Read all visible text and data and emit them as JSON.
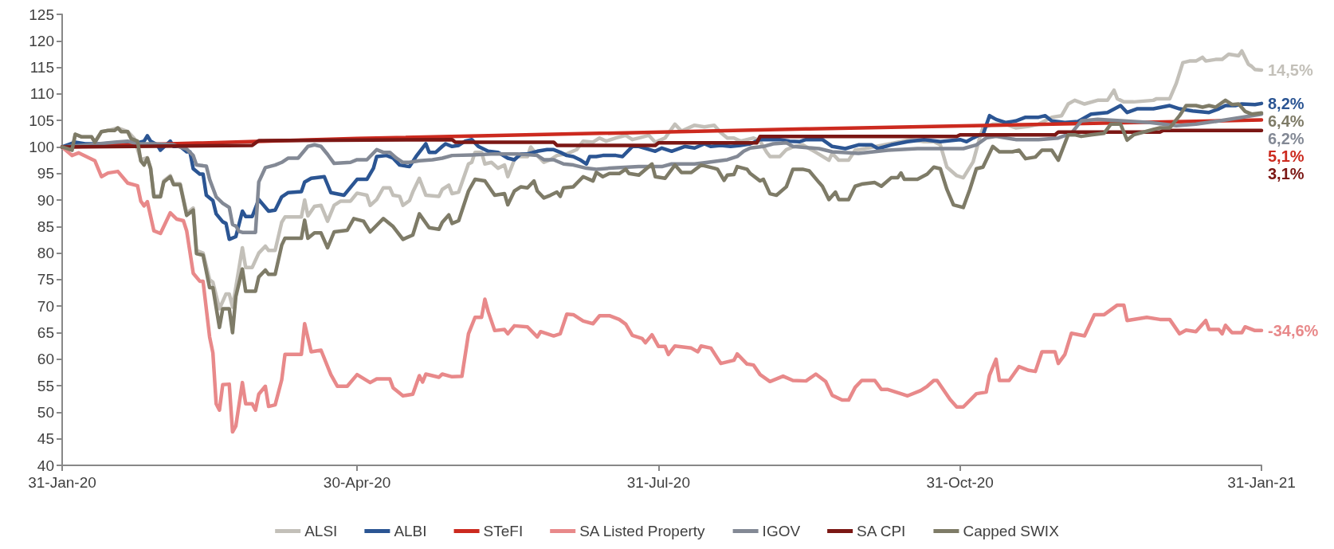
{
  "chart_data": {
    "type": "line",
    "xlim": [
      "2020-01-31",
      "2021-01-31"
    ],
    "xticks": [
      {
        "value": "2020-01-31",
        "label": "31-Jan-20"
      },
      {
        "value": "2020-04-30",
        "label": "30-Apr-20"
      },
      {
        "value": "2020-07-31",
        "label": "31-Jul-20"
      },
      {
        "value": "2020-10-31",
        "label": "31-Oct-20"
      },
      {
        "value": "2021-01-31",
        "label": "31-Jan-21"
      }
    ],
    "ylim": [
      40,
      125
    ],
    "yticks": [
      40,
      45,
      50,
      55,
      60,
      65,
      70,
      75,
      80,
      85,
      90,
      95,
      100,
      105,
      110,
      115,
      120,
      125
    ],
    "grid": false,
    "legend": "bottom",
    "marker": "none",
    "line_style": "solid",
    "series": [
      {
        "name": "ALSI",
        "color": "#c3c0b9",
        "x": [
          "2020-01-31",
          "2020-02-03",
          "2020-02-04",
          "2020-02-06",
          "2020-02-09",
          "2020-02-10",
          "2020-02-12",
          "2020-02-14",
          "2020-02-17",
          "2020-02-20",
          "2020-02-22",
          "2020-02-24",
          "2020-02-26",
          "2020-02-27",
          "2020-02-28",
          "2020-03-01",
          "2020-03-02",
          "2020-03-04",
          "2020-03-05",
          "2020-03-07",
          "2020-03-09",
          "2020-03-11",
          "2020-03-12",
          "2020-03-14",
          "2020-03-16",
          "2020-03-17",
          "2020-03-19",
          "2020-03-21",
          "2020-03-22",
          "2020-03-23",
          "2020-03-26",
          "2020-03-27",
          "2020-03-29",
          "2020-03-31",
          "2020-04-02",
          "2020-04-03",
          "2020-04-05",
          "2020-04-07",
          "2020-04-08",
          "2020-04-13",
          "2020-04-14",
          "2020-04-15",
          "2020-04-17",
          "2020-04-19",
          "2020-04-21",
          "2020-04-23",
          "2020-04-25",
          "2020-04-28",
          "2020-04-30",
          "2020-05-03",
          "2020-05-04",
          "2020-05-06",
          "2020-05-08",
          "2020-05-10",
          "2020-05-11",
          "2020-05-13",
          "2020-05-14",
          "2020-05-16",
          "2020-05-17",
          "2020-05-19",
          "2020-05-21",
          "2020-05-25",
          "2020-05-26",
          "2020-05-28",
          "2020-05-29",
          "2020-05-31",
          "2020-06-03",
          "2020-06-04",
          "2020-06-05",
          "2020-06-07",
          "2020-06-08",
          "2020-06-10",
          "2020-06-12",
          "2020-06-14",
          "2020-06-15",
          "2020-06-17",
          "2020-06-18",
          "2020-06-21",
          "2020-06-22",
          "2020-06-24",
          "2020-06-26",
          "2020-06-28",
          "2020-06-30",
          "2020-07-03",
          "2020-07-06",
          "2020-07-08",
          "2020-07-11",
          "2020-07-13",
          "2020-07-15",
          "2020-07-18",
          "2020-07-21",
          "2020-07-23",
          "2020-07-25",
          "2020-07-28",
          "2020-07-30",
          "2020-08-02",
          "2020-08-05",
          "2020-08-07",
          "2020-08-11",
          "2020-08-14",
          "2020-08-17",
          "2020-08-19",
          "2020-08-21",
          "2020-08-23",
          "2020-08-25",
          "2020-08-29",
          "2020-08-31",
          "2020-09-02",
          "2020-09-03",
          "2020-09-06",
          "2020-09-08",
          "2020-09-10",
          "2020-09-13",
          "2020-09-17",
          "2020-09-21",
          "2020-09-22",
          "2020-09-24",
          "2020-09-27",
          "2020-09-29",
          "2020-10-02",
          "2020-10-08",
          "2020-10-13",
          "2020-10-16",
          "2020-10-20",
          "2020-10-23",
          "2020-10-25",
          "2020-10-27",
          "2020-10-30",
          "2020-11-01",
          "2020-11-04",
          "2020-11-06",
          "2020-11-07",
          "2020-11-10",
          "2020-11-14",
          "2020-11-17",
          "2020-11-21",
          "2020-11-24",
          "2020-11-28",
          "2020-12-01",
          "2020-12-03",
          "2020-12-05",
          "2020-12-08",
          "2020-12-12",
          "2020-12-15",
          "2020-12-17",
          "2020-12-18",
          "2020-12-20",
          "2020-12-23",
          "2020-12-29",
          "2020-12-30",
          "2021-01-03",
          "2021-01-05",
          "2021-01-07",
          "2021-01-09",
          "2021-01-11",
          "2021-01-13",
          "2021-01-14",
          "2021-01-17",
          "2021-01-19",
          "2021-01-21",
          "2021-01-24",
          "2021-01-25",
          "2021-01-27",
          "2021-01-28",
          "2021-01-29",
          "2021-01-31"
        ],
        "values": [
          100,
          99.4,
          102.4,
          101.9,
          101.9,
          100.9,
          102.9,
          103.1,
          103.6,
          102.9,
          101.6,
          97.6,
          98,
          96,
          90.8,
          90.8,
          93.6,
          94.6,
          93.1,
          93.1,
          87.5,
          88.5,
          80.5,
          80,
          75,
          74.5,
          69.5,
          72.3,
          72.3,
          69.8,
          81,
          77.3,
          77.3,
          80,
          81.3,
          80.5,
          80.5,
          85.8,
          86.8,
          86.8,
          90,
          87,
          88.8,
          89,
          86,
          89,
          89.8,
          89.8,
          91.3,
          90.9,
          89,
          90.1,
          92.3,
          92.3,
          90.9,
          90.7,
          89,
          89.9,
          91.5,
          94.1,
          90.9,
          90.7,
          92,
          92.8,
          91.2,
          91.5,
          96.8,
          97.1,
          99,
          99,
          96.8,
          97.1,
          96,
          96.6,
          94.4,
          97.6,
          98.2,
          98.2,
          100,
          98.4,
          97.1,
          97.6,
          98.4,
          98.7,
          99.5,
          101.1,
          100.9,
          101.7,
          101.1,
          101.7,
          102.2,
          101.4,
          101.7,
          102.2,
          100.9,
          101.7,
          104.3,
          103,
          104.1,
          103.8,
          104.1,
          102.7,
          101.7,
          101.7,
          101.1,
          101.7,
          101.1,
          99,
          98.2,
          98.2,
          99.5,
          100,
          100.4,
          99,
          97.5,
          98.8,
          97.5,
          97.5,
          99.4,
          99.7,
          100.4,
          101,
          101.4,
          101,
          101,
          100.4,
          96.2,
          94.6,
          94.2,
          97.2,
          101.7,
          103.6,
          104.3,
          104.3,
          103.6,
          103.9,
          104.3,
          105.6,
          105.9,
          108.1,
          108.8,
          108.1,
          108.8,
          108.8,
          110.7,
          109.1,
          108.5,
          108.5,
          108.8,
          109.1,
          109.1,
          112,
          115.9,
          116.2,
          116.2,
          116.9,
          116.2,
          116.5,
          116.5,
          117.5,
          117.2,
          118.1,
          115.6,
          115.2,
          114.6,
          114.5
        ]
      },
      {
        "name": "ALBI",
        "color": "#2b5593",
        "x": [
          "2020-01-31",
          "2020-02-04",
          "2020-02-07",
          "2020-02-12",
          "2020-02-19",
          "2020-02-22",
          "2020-02-25",
          "2020-02-26",
          "2020-02-27",
          "2020-02-29",
          "2020-03-01",
          "2020-03-04",
          "2020-03-05",
          "2020-03-07",
          "2020-03-09",
          "2020-03-10",
          "2020-03-11",
          "2020-03-13",
          "2020-03-14",
          "2020-03-15",
          "2020-03-17",
          "2020-03-18",
          "2020-03-20",
          "2020-03-21",
          "2020-03-22",
          "2020-03-24",
          "2020-03-26",
          "2020-03-27",
          "2020-03-29",
          "2020-03-31",
          "2020-04-03",
          "2020-04-05",
          "2020-04-07",
          "2020-04-09",
          "2020-04-13",
          "2020-04-14",
          "2020-04-16",
          "2020-04-20",
          "2020-04-22",
          "2020-04-26",
          "2020-04-30",
          "2020-05-03",
          "2020-05-05",
          "2020-05-06",
          "2020-05-09",
          "2020-05-11",
          "2020-05-13",
          "2020-05-16",
          "2020-05-18",
          "2020-05-21",
          "2020-05-22",
          "2020-05-24",
          "2020-05-26",
          "2020-05-27",
          "2020-05-29",
          "2020-05-31",
          "2020-06-02",
          "2020-06-04",
          "2020-06-06",
          "2020-06-09",
          "2020-06-12",
          "2020-06-15",
          "2020-06-17",
          "2020-06-19",
          "2020-06-21",
          "2020-06-24",
          "2020-06-27",
          "2020-06-29",
          "2020-07-01",
          "2020-07-03",
          "2020-07-05",
          "2020-07-07",
          "2020-07-09",
          "2020-07-10",
          "2020-07-12",
          "2020-07-14",
          "2020-07-18",
          "2020-07-20",
          "2020-07-23",
          "2020-07-25",
          "2020-07-30",
          "2020-08-01",
          "2020-08-04",
          "2020-08-08",
          "2020-08-11",
          "2020-08-14",
          "2020-08-16",
          "2020-08-19",
          "2020-08-22",
          "2020-08-25",
          "2020-08-28",
          "2020-08-31",
          "2020-09-03",
          "2020-09-06",
          "2020-09-09",
          "2020-09-12",
          "2020-09-14",
          "2020-09-19",
          "2020-09-22",
          "2020-09-26",
          "2020-09-30",
          "2020-10-04",
          "2020-10-06",
          "2020-10-10",
          "2020-10-15",
          "2020-10-20",
          "2020-10-25",
          "2020-10-31",
          "2020-11-02",
          "2020-11-04",
          "2020-11-06",
          "2020-11-07",
          "2020-11-09",
          "2020-11-11",
          "2020-11-14",
          "2020-11-17",
          "2020-11-20",
          "2020-11-24",
          "2020-11-26",
          "2020-11-28",
          "2020-12-02",
          "2020-12-06",
          "2020-12-10",
          "2020-12-15",
          "2020-12-19",
          "2020-12-21",
          "2020-12-24",
          "2020-12-29",
          "2021-01-03",
          "2021-01-06",
          "2021-01-10",
          "2021-01-15",
          "2021-01-18",
          "2021-01-20",
          "2021-01-23",
          "2021-01-25",
          "2021-01-29",
          "2021-01-31"
        ],
        "values": [
          100,
          100.9,
          100.6,
          100.6,
          100.9,
          100.6,
          101.1,
          102.1,
          101.1,
          100.4,
          99.4,
          101.1,
          100.1,
          100.1,
          99.1,
          99.1,
          95.9,
          94.9,
          94.9,
          90.9,
          89.9,
          87.4,
          85.9,
          85.6,
          82.6,
          83.1,
          87.9,
          86.9,
          86.9,
          90.1,
          87.9,
          88.1,
          90.6,
          91.4,
          91.6,
          93.4,
          94.1,
          94.4,
          91.4,
          90.9,
          93.9,
          93.9,
          96,
          98.2,
          98.4,
          97.9,
          96.6,
          96.3,
          98.2,
          100.6,
          99,
          99,
          100.1,
          100.6,
          100.1,
          100.3,
          101.1,
          101.4,
          100.1,
          99.2,
          99,
          97.9,
          97.6,
          98.7,
          98.7,
          99.2,
          99.5,
          99.5,
          99,
          98.4,
          98.2,
          97.6,
          96.8,
          98.2,
          98.2,
          98.4,
          98.4,
          98.2,
          100.1,
          100.1,
          99.2,
          99.8,
          99.2,
          100.1,
          99.8,
          100.6,
          100.1,
          100.3,
          100.1,
          100.3,
          100.6,
          101.4,
          101.4,
          101.4,
          101.1,
          101,
          101.4,
          101.4,
          100.1,
          99.7,
          100.4,
          100.4,
          99.7,
          100.4,
          101,
          101.4,
          101,
          101.4,
          101,
          101.7,
          102.3,
          102.3,
          105.9,
          105.2,
          104.6,
          104.9,
          105.6,
          105.6,
          105.9,
          104.9,
          104.6,
          104.8,
          106.2,
          106.5,
          107.8,
          106.5,
          107.2,
          107.2,
          107.8,
          107.2,
          106.8,
          106.5,
          107.2,
          107.8,
          107.8,
          108.1,
          108,
          108.2
        ]
      },
      {
        "name": "STeFI",
        "color": "#cc2a1f",
        "x": [
          "2020-01-31",
          "2020-04-30",
          "2020-09-14",
          "2021-01-31"
        ],
        "values": [
          100,
          101.6,
          103.4,
          105.1
        ]
      },
      {
        "name": "SA Listed Property",
        "color": "#e8898a",
        "x": [
          "2020-01-31",
          "2020-02-03",
          "2020-02-05",
          "2020-02-08",
          "2020-02-10",
          "2020-02-12",
          "2020-02-14",
          "2020-02-17",
          "2020-02-20",
          "2020-02-23",
          "2020-02-24",
          "2020-02-25",
          "2020-02-26",
          "2020-02-28",
          "2020-03-01",
          "2020-03-04",
          "2020-03-06",
          "2020-03-08",
          "2020-03-09",
          "2020-03-11",
          "2020-03-13",
          "2020-03-14",
          "2020-03-16",
          "2020-03-17",
          "2020-03-18",
          "2020-03-19",
          "2020-03-20",
          "2020-03-22",
          "2020-03-23",
          "2020-03-24",
          "2020-03-26",
          "2020-03-27",
          "2020-03-29",
          "2020-03-30",
          "2020-03-31",
          "2020-04-02",
          "2020-04-03",
          "2020-04-05",
          "2020-04-07",
          "2020-04-08",
          "2020-04-13",
          "2020-04-14",
          "2020-04-16",
          "2020-04-19",
          "2020-04-22",
          "2020-04-24",
          "2020-04-27",
          "2020-04-30",
          "2020-05-04",
          "2020-05-06",
          "2020-05-10",
          "2020-05-11",
          "2020-05-14",
          "2020-05-17",
          "2020-05-19",
          "2020-05-20",
          "2020-05-21",
          "2020-05-25",
          "2020-05-26",
          "2020-05-29",
          "2020-06-01",
          "2020-06-03",
          "2020-06-05",
          "2020-06-07",
          "2020-06-08",
          "2020-06-09",
          "2020-06-11",
          "2020-06-14",
          "2020-06-15",
          "2020-06-17",
          "2020-06-21",
          "2020-06-24",
          "2020-06-25",
          "2020-06-29",
          "2020-07-01",
          "2020-07-03",
          "2020-07-05",
          "2020-07-08",
          "2020-07-11",
          "2020-07-13",
          "2020-07-16",
          "2020-07-19",
          "2020-07-21",
          "2020-07-23",
          "2020-07-26",
          "2020-07-27",
          "2020-07-29",
          "2020-07-31",
          "2020-08-02",
          "2020-08-03",
          "2020-08-05",
          "2020-08-10",
          "2020-08-12",
          "2020-08-13",
          "2020-08-16",
          "2020-08-19",
          "2020-08-23",
          "2020-08-24",
          "2020-08-27",
          "2020-08-29",
          "2020-08-31",
          "2020-09-03",
          "2020-09-07",
          "2020-09-10",
          "2020-09-14",
          "2020-09-17",
          "2020-09-20",
          "2020-09-22",
          "2020-09-25",
          "2020-09-27",
          "2020-09-29",
          "2020-10-01",
          "2020-10-05",
          "2020-10-07",
          "2020-10-09",
          "2020-10-13",
          "2020-10-15",
          "2020-10-19",
          "2020-10-21",
          "2020-10-23",
          "2020-10-24",
          "2020-10-28",
          "2020-10-30",
          "2020-11-01",
          "2020-11-05",
          "2020-11-08",
          "2020-11-09",
          "2020-11-11",
          "2020-11-12",
          "2020-11-15",
          "2020-11-18",
          "2020-11-21",
          "2020-11-23",
          "2020-11-25",
          "2020-11-29",
          "2020-11-30",
          "2020-12-02",
          "2020-12-04",
          "2020-12-08",
          "2020-12-11",
          "2020-12-14",
          "2020-12-18",
          "2020-12-20",
          "2020-12-21",
          "2020-12-27",
          "2020-12-31",
          "2021-01-03",
          "2021-01-06",
          "2021-01-08",
          "2021-01-11",
          "2021-01-14",
          "2021-01-15",
          "2021-01-18",
          "2021-01-19",
          "2021-01-20",
          "2021-01-22",
          "2021-01-25",
          "2021-01-26",
          "2021-01-29",
          "2021-01-31"
        ],
        "values": [
          100,
          98.4,
          98.9,
          98.0,
          97.4,
          94.4,
          95.1,
          95.4,
          93.2,
          92.7,
          89.8,
          88.9,
          89.7,
          84.2,
          83.7,
          87.6,
          86.4,
          86.1,
          84.2,
          76.2,
          74.7,
          74.7,
          64.2,
          61.2,
          51.6,
          50.4,
          55.2,
          55.3,
          46.3,
          47.4,
          55.6,
          51.6,
          51.6,
          50.4,
          53.4,
          54.9,
          51.1,
          51.4,
          56.1,
          60.9,
          60.9,
          66.7,
          61.4,
          61.7,
          57.1,
          54.9,
          54.9,
          57.1,
          55.6,
          56.3,
          56.3,
          54.6,
          53.1,
          53.4,
          56.9,
          55.7,
          57.2,
          56.6,
          57.2,
          56.7,
          56.8,
          64.8,
          67.9,
          67.9,
          71.3,
          69.0,
          65.4,
          65.6,
          64.8,
          66.3,
          66.1,
          64.2,
          65.2,
          64.4,
          64.8,
          68.5,
          68.4,
          67.2,
          66.7,
          68.2,
          68.2,
          67.5,
          66.6,
          64.5,
          63.9,
          63.1,
          64.6,
          62.4,
          62.4,
          60.9,
          62.5,
          62.1,
          61.4,
          62.5,
          62.1,
          59.2,
          59.8,
          61.0,
          59.1,
          58.9,
          57.1,
          55.8,
          56.8,
          56.0,
          55.9,
          57.2,
          55.8,
          53.2,
          52.3,
          52.3,
          54.7,
          56.0,
          56.0,
          54.3,
          54.3,
          53.5,
          53.1,
          54.1,
          54.9,
          56.0,
          56.0,
          52.4,
          51.0,
          51.0,
          53.5,
          53.8,
          57.0,
          60.0,
          56.0,
          56.0,
          58.6,
          57.9,
          57.7,
          61.4,
          61.4,
          59.2,
          60.9,
          64.9,
          64.4,
          68.4,
          68.4,
          70.2,
          70.2,
          67.3,
          67.9,
          67.5,
          67.5,
          64.8,
          65.5,
          65.2,
          67.3,
          65.6,
          65.6,
          64.8,
          66.4,
          65.0,
          65.0,
          66.1,
          65.4,
          65.4
        ]
      },
      {
        "name": "IGOV",
        "color": "#838995",
        "x": [
          "2020-01-31",
          "2020-02-08",
          "2020-02-16",
          "2020-02-20",
          "2020-02-23",
          "2020-02-28",
          "2020-03-05",
          "2020-03-09",
          "2020-03-11",
          "2020-03-12",
          "2020-03-15",
          "2020-03-16",
          "2020-03-18",
          "2020-03-20",
          "2020-03-22",
          "2020-03-23",
          "2020-03-24",
          "2020-03-25",
          "2020-03-26",
          "2020-03-30",
          "2020-03-31",
          "2020-04-02",
          "2020-04-05",
          "2020-04-07",
          "2020-04-09",
          "2020-04-12",
          "2020-04-15",
          "2020-04-17",
          "2020-04-19",
          "2020-04-21",
          "2020-04-23",
          "2020-04-28",
          "2020-04-30",
          "2020-05-03",
          "2020-05-06",
          "2020-05-08",
          "2020-05-10",
          "2020-05-12",
          "2020-05-14",
          "2020-05-16",
          "2020-05-19",
          "2020-05-23",
          "2020-05-26",
          "2020-05-29",
          "2020-06-04",
          "2020-06-11",
          "2020-06-18",
          "2020-06-24",
          "2020-06-26",
          "2020-06-29",
          "2020-07-02",
          "2020-07-05",
          "2020-07-09",
          "2020-07-12",
          "2020-07-16",
          "2020-07-25",
          "2020-08-01",
          "2020-08-04",
          "2020-08-11",
          "2020-08-15",
          "2020-08-21",
          "2020-08-24",
          "2020-08-26",
          "2020-08-28",
          "2020-09-01",
          "2020-09-04",
          "2020-09-08",
          "2020-09-10",
          "2020-09-18",
          "2020-09-22",
          "2020-09-30",
          "2020-10-09",
          "2020-10-18",
          "2020-10-25",
          "2020-11-01",
          "2020-11-05",
          "2020-11-08",
          "2020-11-11",
          "2020-11-17",
          "2020-11-24",
          "2020-11-30",
          "2020-12-04",
          "2020-12-07",
          "2020-12-12",
          "2020-12-20",
          "2020-12-28",
          "2021-01-05",
          "2021-01-11",
          "2021-01-18",
          "2021-01-25",
          "2021-01-31"
        ],
        "values": [
          100,
          100.4,
          100.9,
          101.1,
          100.6,
          100.6,
          100.4,
          99.6,
          98.4,
          96.6,
          96.4,
          93.9,
          90.6,
          89.4,
          88.6,
          85.4,
          85.1,
          84.1,
          83.9,
          83.9,
          93.4,
          96.1,
          96.6,
          97.1,
          97.9,
          97.9,
          100.1,
          100.4,
          100.1,
          98.6,
          96.9,
          97.1,
          97.6,
          97.6,
          99.5,
          99,
          99,
          97.9,
          97.1,
          97.1,
          97.4,
          97.6,
          97.9,
          98.4,
          98.5,
          98.7,
          98.7,
          98.4,
          97.6,
          97.6,
          96.8,
          96.6,
          96,
          95.8,
          96,
          96.3,
          96.3,
          96.8,
          96.8,
          97.1,
          97.6,
          98.2,
          99.2,
          99.8,
          100.1,
          100.6,
          100.8,
          100.1,
          99.7,
          99.1,
          98.8,
          99.4,
          99.7,
          99.7,
          99.7,
          100.4,
          101.7,
          102,
          101.4,
          101.4,
          101.7,
          102.6,
          104.9,
          105.2,
          104.9,
          104.6,
          104.0,
          104.3,
          104.9,
          105.6,
          106.2
        ]
      },
      {
        "name": "SA CPI",
        "color": "#7b1714",
        "x": [
          "2020-01-31",
          "2020-03-29",
          "2020-03-31",
          "2020-05-29",
          "2020-05-30",
          "2020-06-29",
          "2020-06-30",
          "2020-07-30",
          "2020-07-31",
          "2020-08-30",
          "2020-08-31",
          "2020-10-30",
          "2020-10-31",
          "2020-11-29",
          "2020-11-30",
          "2020-12-31",
          "2021-01-01",
          "2021-01-31"
        ],
        "values": [
          100,
          100.3,
          101.2,
          101.4,
          100.9,
          100.9,
          100.3,
          100.3,
          100.8,
          100.8,
          102.0,
          102.0,
          102.3,
          102.3,
          102.8,
          102.8,
          103.1,
          103.1
        ]
      },
      {
        "name": "Capped SWIX",
        "color": "#7e7b67",
        "x": [
          "2020-01-31",
          "2020-02-03",
          "2020-02-04",
          "2020-02-06",
          "2020-02-09",
          "2020-02-10",
          "2020-02-12",
          "2020-02-14",
          "2020-02-16",
          "2020-02-17",
          "2020-02-18",
          "2020-02-20",
          "2020-02-21",
          "2020-02-23",
          "2020-02-24",
          "2020-02-25",
          "2020-02-26",
          "2020-02-27",
          "2020-02-28",
          "2020-03-01",
          "2020-03-02",
          "2020-03-04",
          "2020-03-05",
          "2020-03-07",
          "2020-03-09",
          "2020-03-11",
          "2020-03-12",
          "2020-03-14",
          "2020-03-16",
          "2020-03-17",
          "2020-03-19",
          "2020-03-20",
          "2020-03-22",
          "2020-03-23",
          "2020-03-24",
          "2020-03-26",
          "2020-03-27",
          "2020-03-30",
          "2020-03-31",
          "2020-04-02",
          "2020-04-03",
          "2020-04-05",
          "2020-04-07",
          "2020-04-08",
          "2020-04-13",
          "2020-04-14",
          "2020-04-15",
          "2020-04-17",
          "2020-04-19",
          "2020-04-21",
          "2020-04-23",
          "2020-04-27",
          "2020-04-29",
          "2020-05-02",
          "2020-05-04",
          "2020-05-08",
          "2020-05-11",
          "2020-05-14",
          "2020-05-17",
          "2020-05-19",
          "2020-05-22",
          "2020-05-25",
          "2020-05-26",
          "2020-05-28",
          "2020-05-29",
          "2020-05-31",
          "2020-06-03",
          "2020-06-05",
          "2020-06-08",
          "2020-06-11",
          "2020-06-14",
          "2020-06-15",
          "2020-06-17",
          "2020-06-19",
          "2020-06-21",
          "2020-06-23",
          "2020-06-24",
          "2020-06-26",
          "2020-06-28",
          "2020-06-30",
          "2020-07-01",
          "2020-07-02",
          "2020-07-05",
          "2020-07-08",
          "2020-07-11",
          "2020-07-12",
          "2020-07-14",
          "2020-07-16",
          "2020-07-19",
          "2020-07-21",
          "2020-07-22",
          "2020-07-25",
          "2020-07-29",
          "2020-07-30",
          "2020-08-02",
          "2020-08-05",
          "2020-08-07",
          "2020-08-10",
          "2020-08-13",
          "2020-08-17",
          "2020-08-18",
          "2020-08-20",
          "2020-08-21",
          "2020-08-23",
          "2020-08-24",
          "2020-08-27",
          "2020-08-28",
          "2020-08-31",
          "2020-09-01",
          "2020-09-03",
          "2020-09-05",
          "2020-09-08",
          "2020-09-10",
          "2020-09-13",
          "2020-09-15",
          "2020-09-18",
          "2020-09-19",
          "2020-09-21",
          "2020-09-23",
          "2020-09-24",
          "2020-09-27",
          "2020-09-29",
          "2020-10-01",
          "2020-10-05",
          "2020-10-07",
          "2020-10-10",
          "2020-10-12",
          "2020-10-13",
          "2020-10-14",
          "2020-10-18",
          "2020-10-21",
          "2020-10-23",
          "2020-10-25",
          "2020-10-27",
          "2020-10-29",
          "2020-11-01",
          "2020-11-03",
          "2020-11-05",
          "2020-11-07",
          "2020-11-10",
          "2020-11-12",
          "2020-11-16",
          "2020-11-18",
          "2020-11-20",
          "2020-11-23",
          "2020-11-25",
          "2020-11-28",
          "2020-11-30",
          "2020-12-03",
          "2020-12-05",
          "2020-12-07",
          "2020-12-10",
          "2020-12-14",
          "2020-12-16",
          "2020-12-19",
          "2020-12-21",
          "2020-12-23",
          "2020-12-29",
          "2020-12-31",
          "2021-01-03",
          "2021-01-06",
          "2021-01-08",
          "2021-01-11",
          "2021-01-13",
          "2021-01-15",
          "2021-01-17",
          "2021-01-20",
          "2021-01-22",
          "2021-01-24",
          "2021-01-26",
          "2021-01-28",
          "2021-01-31"
        ],
        "values": [
          100,
          99.4,
          102.4,
          101.9,
          101.9,
          100.9,
          102.9,
          103.1,
          103.1,
          103.6,
          102.9,
          102.9,
          101.6,
          101.1,
          97.4,
          96.6,
          97.9,
          95.9,
          90.6,
          90.6,
          93.4,
          94.4,
          92.9,
          92.9,
          87.1,
          88.1,
          79.9,
          79.6,
          73.5,
          73.5,
          66.0,
          69.5,
          69.5,
          65.0,
          71.8,
          77,
          72.8,
          72.8,
          75.5,
          76.8,
          76,
          76,
          81.5,
          82.8,
          82.8,
          86.2,
          82.8,
          83.8,
          83.8,
          81,
          84,
          84.3,
          86.5,
          86,
          84,
          86.5,
          85,
          82.6,
          83.4,
          87.4,
          84.8,
          84.5,
          85.8,
          87.2,
          85.6,
          86.1,
          91.7,
          93.9,
          93.6,
          90.9,
          91.2,
          89.1,
          91.7,
          92.5,
          92.3,
          93.6,
          91.7,
          90.4,
          90.9,
          91.5,
          90.7,
          92.3,
          92.5,
          94.4,
          93.6,
          95.2,
          94.4,
          95,
          95,
          95.8,
          95,
          94.7,
          96.8,
          94.4,
          94.1,
          96.6,
          95.2,
          95.2,
          96.6,
          96,
          95.8,
          93.7,
          94.7,
          94.8,
          96.3,
          95.8,
          95,
          93.6,
          93.9,
          91.2,
          90.9,
          92.5,
          95.8,
          95.8,
          95.5,
          93.3,
          92.6,
          90.1,
          91.5,
          90.1,
          90.1,
          92.6,
          93,
          93.3,
          92.6,
          94.2,
          94.2,
          95.1,
          93.9,
          93.9,
          94.9,
          96.2,
          95.9,
          92,
          89.1,
          88.6,
          92,
          95.9,
          96.2,
          100.1,
          99.1,
          99.1,
          99.4,
          97.8,
          98.1,
          99.4,
          99.4,
          97.5,
          102.3,
          102.3,
          102,
          102.3,
          102.6,
          104.3,
          104.3,
          101.3,
          102.3,
          103.3,
          103.6,
          103.6,
          105.9,
          107.8,
          107.8,
          107.5,
          107.8,
          107.5,
          108.8,
          108,
          108.1,
          106.7,
          106.2,
          106.4
        ]
      }
    ],
    "annotations": [
      {
        "text": "14,5%",
        "x": "2021-01-31",
        "y": 114.5
      },
      {
        "text": "8,2%",
        "x": "2021-01-31",
        "y": 108.2
      },
      {
        "text": "6,4%",
        "x": "2021-01-31",
        "y": 106.4
      },
      {
        "text": "6,2%",
        "x": "2021-01-31",
        "y": 106.2
      },
      {
        "text": "5,1%",
        "x": "2021-01-31",
        "y": 105.1
      },
      {
        "text": "3,1%",
        "x": "2021-01-31",
        "y": 103.1
      },
      {
        "text": "-34,6%",
        "x": "2021-01-31",
        "y": 65.4
      }
    ]
  }
}
